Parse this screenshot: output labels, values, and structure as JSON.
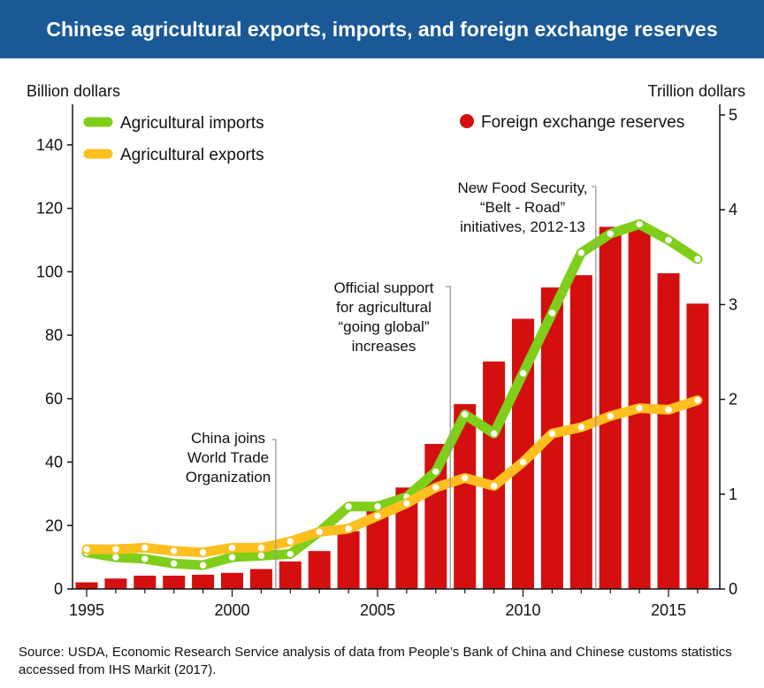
{
  "title": "Chinese agricultural exports, imports, and foreign exchange reserves",
  "source": "Source: USDA, Economic Research Service analysis of data from People’s Bank of China and Chinese customs statistics accessed from IHS Markit (2017).",
  "colors": {
    "title_bg": "#1a5896",
    "reserves_bar": "#d40f0f",
    "imports_line": "#7fcf1a",
    "exports_line": "#ffbf1f",
    "marker": "#ffffff"
  },
  "chart_data": {
    "type": "bar+line",
    "left_axis": {
      "label": "Billion dollars",
      "ylim": [
        0,
        150
      ],
      "ticks": [
        0,
        20,
        40,
        60,
        80,
        100,
        120,
        140
      ]
    },
    "right_axis": {
      "label": "Trillion dollars",
      "ylim": [
        0,
        5
      ],
      "ticks": [
        0,
        1,
        2,
        3,
        4,
        5
      ]
    },
    "x": [
      1995,
      1996,
      1997,
      1998,
      1999,
      2000,
      2001,
      2002,
      2003,
      2004,
      2005,
      2006,
      2007,
      2008,
      2009,
      2010,
      2011,
      2012,
      2013,
      2014,
      2015,
      2016
    ],
    "x_ticks": [
      "1995",
      "2000",
      "2005",
      "2010",
      "2015"
    ],
    "series": [
      {
        "name": "Foreign exchange reserves",
        "type": "bar",
        "axis": "right",
        "values": [
          0.07,
          0.11,
          0.14,
          0.14,
          0.15,
          0.17,
          0.21,
          0.29,
          0.4,
          0.61,
          0.82,
          1.07,
          1.53,
          1.95,
          2.4,
          2.85,
          3.18,
          3.31,
          3.82,
          3.84,
          3.33,
          3.01
        ]
      },
      {
        "name": "Agricultural imports",
        "type": "line",
        "axis": "left",
        "values": [
          11.5,
          10.0,
          9.5,
          8.0,
          7.5,
          10.0,
          10.5,
          11.0,
          18.0,
          26.0,
          26.0,
          29.0,
          37.0,
          55.0,
          49.0,
          68.0,
          87.0,
          106.0,
          112.0,
          115.0,
          110.0,
          104.0
        ]
      },
      {
        "name": "Agricultural exports",
        "type": "line",
        "axis": "left",
        "values": [
          12.5,
          12.5,
          13.0,
          12.0,
          11.5,
          13.0,
          13.0,
          15.0,
          18.0,
          19.0,
          23.0,
          27.0,
          32.0,
          35.0,
          32.5,
          40.0,
          49.0,
          51.0,
          54.5,
          57.0,
          56.5,
          59.5
        ]
      }
    ],
    "legend": [
      "Agricultural imports",
      "Agricultural exports",
      "Foreign exchange reserves"
    ],
    "annotations": [
      {
        "year": 2001.5,
        "lines": [
          "China joins",
          "World Trade",
          "Organization"
        ]
      },
      {
        "year": 2007.5,
        "lines": [
          "Official support",
          "for agricultural",
          "“going global”",
          "increases"
        ]
      },
      {
        "year": 2012.5,
        "lines": [
          "New Food Security,",
          "“Belt - Road”",
          "initiatives, 2012-13"
        ]
      }
    ],
    "grid": false
  }
}
